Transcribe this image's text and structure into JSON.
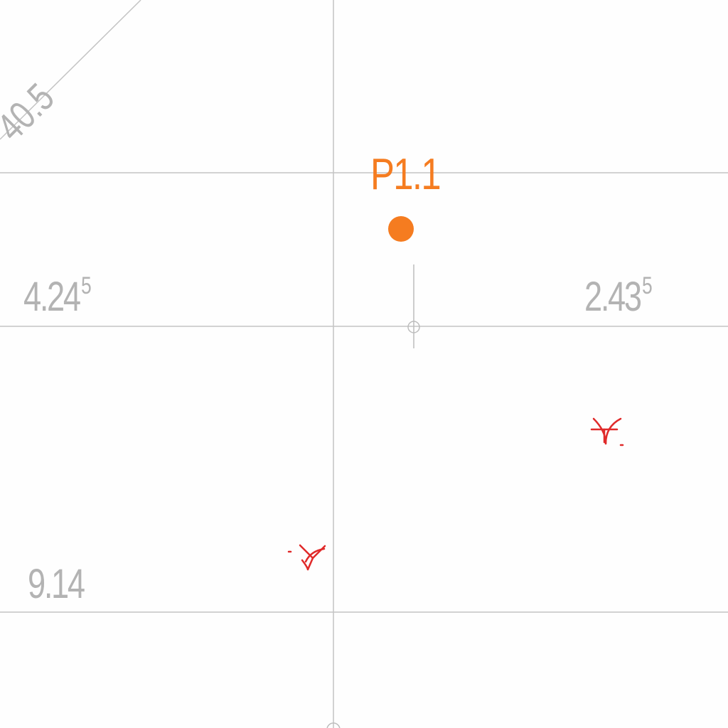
{
  "drawing": {
    "point": {
      "label": "P1.1",
      "color": "#f57c20"
    },
    "dimensions": {
      "left_upper": {
        "main": "4.24",
        "sup": "5"
      },
      "right_upper": {
        "main": "2.43",
        "sup": "5"
      },
      "left_lower": {
        "main": "9.14"
      }
    },
    "diagonal_label": "40.5",
    "grid_color": "#bdbdbd",
    "marker_color": "#e02a2a",
    "markers": [
      {
        "name": "survey-marker-right",
        "icon": "y-mark-icon"
      },
      {
        "name": "survey-marker-left",
        "icon": "y-mark-icon"
      }
    ]
  }
}
